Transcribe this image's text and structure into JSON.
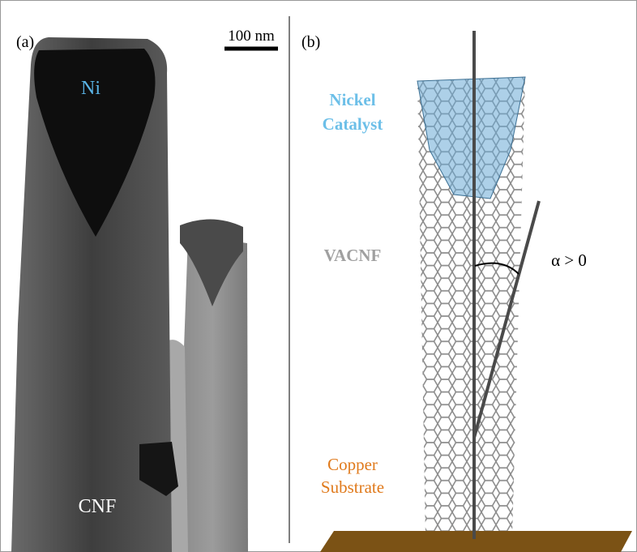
{
  "panel_a": {
    "label": "(a)",
    "scale_bar": "100 nm",
    "catalyst_label": "Ni",
    "fiber_label": "CNF"
  },
  "panel_b": {
    "label": "(b)",
    "catalyst_label": [
      "Nickel",
      "Catalyst"
    ],
    "fiber_label": "VACNF",
    "angle_label": "α > 0",
    "substrate_label": [
      "Copper",
      "Substrate"
    ]
  }
}
